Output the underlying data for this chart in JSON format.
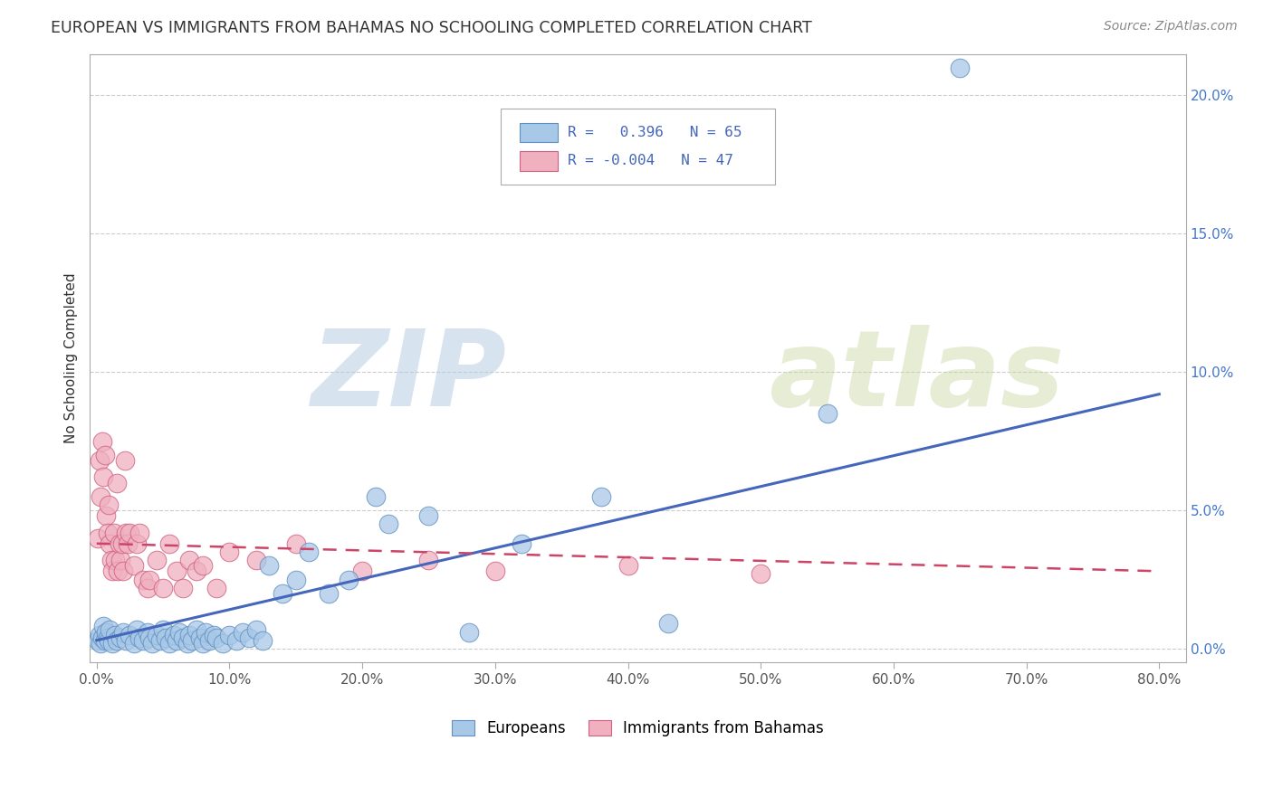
{
  "title": "EUROPEAN VS IMMIGRANTS FROM BAHAMAS NO SCHOOLING COMPLETED CORRELATION CHART",
  "source": "Source: ZipAtlas.com",
  "ylabel": "No Schooling Completed",
  "xlim": [
    -0.005,
    0.82
  ],
  "ylim": [
    -0.005,
    0.215
  ],
  "xticks": [
    0.0,
    0.1,
    0.2,
    0.3,
    0.4,
    0.5,
    0.6,
    0.7,
    0.8
  ],
  "yticks": [
    0.0,
    0.05,
    0.1,
    0.15,
    0.2
  ],
  "ytick_labels": [
    "0.0%",
    "5.0%",
    "10.0%",
    "15.0%",
    "20.0%"
  ],
  "xtick_labels": [
    "0.0%",
    "10.0%",
    "20.0%",
    "30.0%",
    "40.0%",
    "50.0%",
    "60.0%",
    "70.0%",
    "80.0%"
  ],
  "legend_R_blue": "0.396",
  "legend_N_blue": "65",
  "legend_R_pink": "-0.004",
  "legend_N_pink": "47",
  "blue_color": "#A8C8E8",
  "pink_color": "#F0B0C0",
  "blue_edge_color": "#6090C0",
  "pink_edge_color": "#D06080",
  "blue_line_color": "#4466BB",
  "pink_line_color": "#CC4466",
  "background_color": "#FFFFFF",
  "blue_points_x": [
    0.001,
    0.002,
    0.003,
    0.004,
    0.005,
    0.006,
    0.007,
    0.008,
    0.009,
    0.01,
    0.012,
    0.014,
    0.015,
    0.018,
    0.02,
    0.022,
    0.025,
    0.028,
    0.03,
    0.032,
    0.035,
    0.038,
    0.04,
    0.042,
    0.045,
    0.048,
    0.05,
    0.052,
    0.055,
    0.058,
    0.06,
    0.062,
    0.065,
    0.068,
    0.07,
    0.072,
    0.075,
    0.078,
    0.08,
    0.082,
    0.085,
    0.088,
    0.09,
    0.095,
    0.1,
    0.105,
    0.11,
    0.115,
    0.12,
    0.125,
    0.13,
    0.14,
    0.15,
    0.16,
    0.175,
    0.19,
    0.21,
    0.22,
    0.25,
    0.28,
    0.32,
    0.38,
    0.43,
    0.55,
    0.65
  ],
  "blue_points_y": [
    0.003,
    0.005,
    0.002,
    0.004,
    0.008,
    0.003,
    0.006,
    0.004,
    0.003,
    0.007,
    0.002,
    0.005,
    0.003,
    0.004,
    0.006,
    0.003,
    0.005,
    0.002,
    0.007,
    0.004,
    0.003,
    0.006,
    0.004,
    0.002,
    0.005,
    0.003,
    0.007,
    0.004,
    0.002,
    0.005,
    0.003,
    0.006,
    0.004,
    0.002,
    0.005,
    0.003,
    0.007,
    0.004,
    0.002,
    0.006,
    0.003,
    0.005,
    0.004,
    0.002,
    0.005,
    0.003,
    0.006,
    0.004,
    0.007,
    0.003,
    0.03,
    0.02,
    0.025,
    0.035,
    0.02,
    0.025,
    0.055,
    0.045,
    0.048,
    0.006,
    0.038,
    0.055,
    0.009,
    0.085,
    0.21
  ],
  "pink_points_x": [
    0.001,
    0.002,
    0.003,
    0.004,
    0.005,
    0.006,
    0.007,
    0.008,
    0.009,
    0.01,
    0.011,
    0.012,
    0.013,
    0.014,
    0.015,
    0.016,
    0.017,
    0.018,
    0.019,
    0.02,
    0.021,
    0.022,
    0.023,
    0.025,
    0.028,
    0.03,
    0.032,
    0.035,
    0.038,
    0.04,
    0.045,
    0.05,
    0.055,
    0.06,
    0.065,
    0.07,
    0.075,
    0.08,
    0.09,
    0.1,
    0.12,
    0.15,
    0.2,
    0.25,
    0.3,
    0.4,
    0.5
  ],
  "pink_points_y": [
    0.04,
    0.068,
    0.055,
    0.075,
    0.062,
    0.07,
    0.048,
    0.042,
    0.052,
    0.038,
    0.032,
    0.028,
    0.042,
    0.032,
    0.06,
    0.028,
    0.038,
    0.032,
    0.038,
    0.028,
    0.068,
    0.042,
    0.038,
    0.042,
    0.03,
    0.038,
    0.042,
    0.025,
    0.022,
    0.025,
    0.032,
    0.022,
    0.038,
    0.028,
    0.022,
    0.032,
    0.028,
    0.03,
    0.022,
    0.035,
    0.032,
    0.038,
    0.028,
    0.032,
    0.028,
    0.03,
    0.027
  ],
  "blue_trend_x": [
    0.0,
    0.8
  ],
  "blue_trend_y": [
    0.003,
    0.092
  ],
  "pink_trend_x": [
    0.0,
    0.8
  ],
  "pink_trend_y": [
    0.038,
    0.028
  ]
}
